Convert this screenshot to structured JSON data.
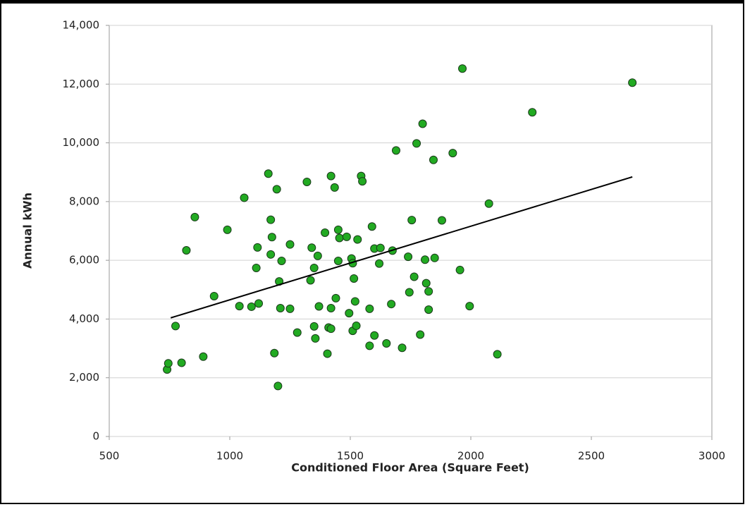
{
  "chart_data": {
    "type": "scatter",
    "xlabel": "Conditioned Floor Area (Square Feet)",
    "ylabel": "Annual kWh",
    "xlim": [
      500,
      3000
    ],
    "xticks": [
      500,
      1000,
      1500,
      2000,
      2500,
      3000
    ],
    "ylim": [
      0,
      14000
    ],
    "yticks": [
      0,
      {
        "value": 2000,
        "label": "2,000"
      },
      {
        "value": 4000,
        "label": "4,000"
      },
      {
        "value": 6000,
        "label": "6,000"
      },
      {
        "value": 8000,
        "label": "8,000"
      },
      {
        "value": 10000,
        "label": "10,000"
      },
      {
        "value": 12000,
        "label": "12,000"
      },
      {
        "value": 14000,
        "label": "14,000"
      }
    ],
    "grid": true,
    "series": [
      {
        "color": "#22aa22",
        "x": [
          740,
          745,
          775,
          800,
          820,
          855,
          890,
          935,
          990,
          1040,
          1060,
          1090,
          1110,
          1115,
          1120,
          1160,
          1170,
          1170,
          1175,
          1185,
          1195,
          1200,
          1205,
          1210,
          1215,
          1250,
          1250,
          1280,
          1320,
          1335,
          1340,
          1350,
          1350,
          1355,
          1365,
          1370,
          1395,
          1405,
          1410,
          1420,
          1420,
          1420,
          1435,
          1440,
          1450,
          1450,
          1455,
          1485,
          1495,
          1505,
          1510,
          1510,
          1515,
          1520,
          1525,
          1530,
          1545,
          1550,
          1580,
          1580,
          1590,
          1600,
          1600,
          1620,
          1625,
          1650,
          1670,
          1675,
          1690,
          1715,
          1740,
          1745,
          1755,
          1765,
          1775,
          1790,
          1800,
          1810,
          1815,
          1825,
          1825,
          1845,
          1850,
          1880,
          1925,
          1955,
          1965,
          1995,
          2075,
          2110,
          2255,
          2670
        ],
        "y": [
          2280,
          2490,
          3760,
          2510,
          6340,
          7470,
          2720,
          4780,
          7040,
          4440,
          8130,
          4420,
          5740,
          6440,
          4530,
          8950,
          6200,
          7380,
          6790,
          2840,
          8420,
          1720,
          5280,
          4370,
          5980,
          6540,
          4350,
          3540,
          8670,
          5320,
          6430,
          5740,
          3750,
          3340,
          6150,
          4430,
          6940,
          2820,
          3710,
          8870,
          3670,
          4370,
          8480,
          4710,
          5980,
          7040,
          6760,
          6800,
          4200,
          6060,
          5900,
          3600,
          5380,
          4600,
          3770,
          6710,
          8870,
          8690,
          3090,
          4350,
          7150,
          6400,
          3440,
          5890,
          6420,
          3170,
          4510,
          6330,
          9740,
          3020,
          6120,
          4910,
          7370,
          5440,
          9980,
          3470,
          10650,
          6020,
          5220,
          4940,
          4320,
          9420,
          6080,
          7360,
          9650,
          5670,
          12530,
          4440,
          7930,
          2800,
          11040,
          12050
        ]
      }
    ],
    "trendline": {
      "color": "#000000",
      "x": [
        755,
        2670
      ],
      "y": [
        4040,
        8840
      ]
    }
  }
}
